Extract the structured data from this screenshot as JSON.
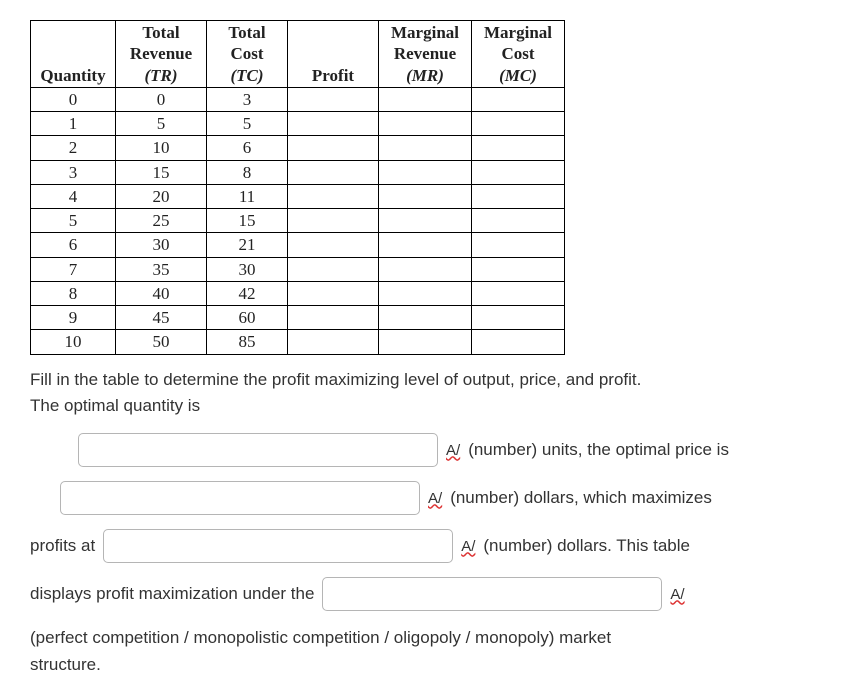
{
  "table": {
    "headers": {
      "qty": "Quantity",
      "tr": "Total Revenue",
      "tr_sub": "(TR)",
      "tc": "Total Cost",
      "tc_sub": "(TC)",
      "profit": "Profit",
      "mr": "Marginal Revenue",
      "mr_sub": "(MR)",
      "mc": "Marginal Cost",
      "mc_sub": "(MC)"
    },
    "rows": [
      {
        "q": "0",
        "tr": "0",
        "tc": "3",
        "p": "",
        "mr": "",
        "mc": ""
      },
      {
        "q": "1",
        "tr": "5",
        "tc": "5",
        "p": "",
        "mr": "",
        "mc": ""
      },
      {
        "q": "2",
        "tr": "10",
        "tc": "6",
        "p": "",
        "mr": "",
        "mc": ""
      },
      {
        "q": "3",
        "tr": "15",
        "tc": "8",
        "p": "",
        "mr": "",
        "mc": ""
      },
      {
        "q": "4",
        "tr": "20",
        "tc": "11",
        "p": "",
        "mr": "",
        "mc": ""
      },
      {
        "q": "5",
        "tr": "25",
        "tc": "15",
        "p": "",
        "mr": "",
        "mc": ""
      },
      {
        "q": "6",
        "tr": "30",
        "tc": "21",
        "p": "",
        "mr": "",
        "mc": ""
      },
      {
        "q": "7",
        "tr": "35",
        "tc": "30",
        "p": "",
        "mr": "",
        "mc": ""
      },
      {
        "q": "8",
        "tr": "40",
        "tc": "42",
        "p": "",
        "mr": "",
        "mc": ""
      },
      {
        "q": "9",
        "tr": "45",
        "tc": "60",
        "p": "",
        "mr": "",
        "mc": ""
      },
      {
        "q": "10",
        "tr": "50",
        "tc": "85",
        "p": "",
        "mr": "",
        "mc": ""
      }
    ]
  },
  "text": {
    "intro1": "Fill in the table to determine the profit maximizing level of output, price, and profit.",
    "intro2": "The optimal quantity is",
    "spell": "A/",
    "after1": "(number) units, the optimal price is",
    "after2": "(number) dollars, which maximizes",
    "profits_at": "profits at",
    "after3": "(number) dollars. This table",
    "displays": "displays profit maximization under the",
    "options": "(perfect competition / monopolistic competition / oligopoly / monopoly) market",
    "structure": "structure."
  }
}
